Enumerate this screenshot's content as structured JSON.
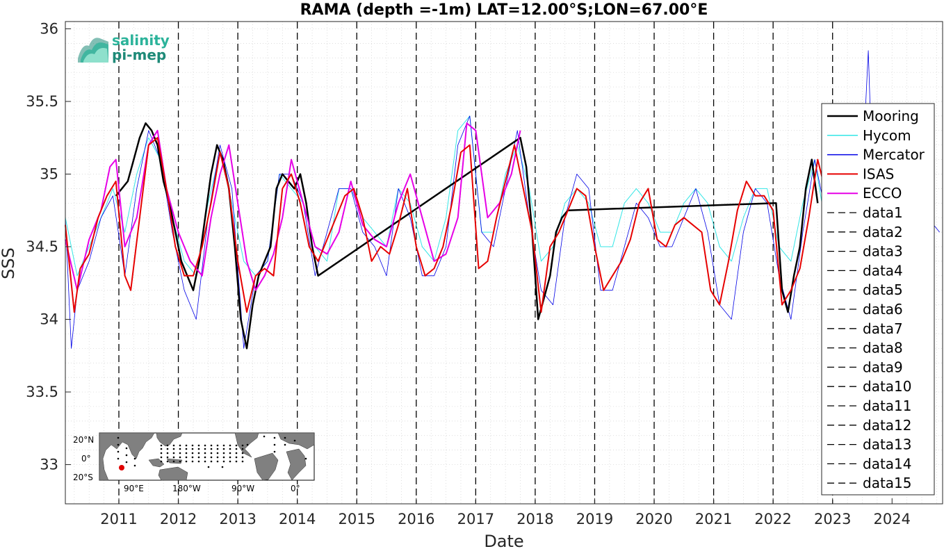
{
  "logo": {
    "line1": "salinity",
    "line2": "pi-mep",
    "color1": "#2bb39a",
    "color2": "#1e8a78"
  },
  "map": {
    "lat_labels": [
      "20°N",
      "0°",
      "20°S"
    ],
    "lon_labels": [
      "90°E",
      "180°W",
      "90°W",
      "0°"
    ],
    "marker_color": "#e00000"
  },
  "chart_data": {
    "type": "line",
    "title": "RAMA (depth =-1m) LAT=12.00°S;LON=67.00°E",
    "xlabel": "Date",
    "ylabel": "SSS",
    "xlim": [
      2010.1,
      2024.85
    ],
    "ylim": [
      32.73,
      36.05
    ],
    "yticks": [
      33,
      33.5,
      34,
      34.5,
      35,
      35.5,
      36
    ],
    "ytick_labels": [
      "33",
      "33.5",
      "34",
      "34.5",
      "35",
      "35.5",
      "36"
    ],
    "xticks": [
      2011,
      2012,
      2013,
      2014,
      2015,
      2016,
      2017,
      2018,
      2019,
      2020,
      2021,
      2022,
      2023,
      2024
    ],
    "xtick_labels": [
      "2011",
      "2012",
      "2013",
      "2014",
      "2015",
      "2016",
      "2017",
      "2018",
      "2019",
      "2020",
      "2021",
      "2022",
      "2023",
      "2024"
    ],
    "grid": true,
    "legend_position": "right",
    "vertical_dashed_lines": [
      2011,
      2012,
      2013,
      2014,
      2015,
      2016,
      2017,
      2018,
      2019,
      2020,
      2021,
      2022,
      2023
    ],
    "series": [
      {
        "name": "Mooring",
        "color": "#000000",
        "width": 2.5,
        "x": [
          2010.95,
          2011.05,
          2011.15,
          2011.25,
          2011.35,
          2011.45,
          2011.55,
          2011.65,
          2011.75,
          2011.85,
          2011.95,
          2012.05,
          2012.15,
          2012.25,
          2012.35,
          2012.45,
          2012.55,
          2012.65,
          2012.75,
          2012.85,
          2012.95,
          2013.05,
          2013.15,
          2013.25,
          2013.35,
          2013.45,
          2013.55,
          2013.65,
          2013.75,
          2013.85,
          2013.95,
          2014.05,
          2014.15,
          2014.25,
          2014.35,
          2017.75,
          2017.85,
          2017.95,
          2018.05,
          2018.15,
          2018.25,
          2018.35,
          2018.45,
          2018.55,
          2022.05,
          2022.15,
          2022.25,
          2022.35,
          2022.45,
          2022.55,
          2022.65,
          2022.75
        ],
        "y": [
          34.85,
          34.9,
          34.95,
          35.1,
          35.25,
          35.35,
          35.3,
          35.2,
          34.95,
          34.8,
          34.6,
          34.4,
          34.3,
          34.2,
          34.4,
          34.7,
          35.0,
          35.2,
          35.1,
          34.9,
          34.5,
          34.0,
          33.8,
          34.1,
          34.3,
          34.4,
          34.5,
          34.9,
          35.0,
          34.95,
          34.9,
          35.0,
          34.8,
          34.5,
          34.3,
          35.25,
          35.05,
          34.6,
          34.0,
          34.15,
          34.3,
          34.6,
          34.7,
          34.75,
          34.8,
          34.2,
          34.05,
          34.3,
          34.5,
          34.9,
          35.1,
          34.8
        ]
      },
      {
        "name": "Hycom",
        "color": "#33e6e6",
        "width": 1,
        "x": [
          2010.1,
          2010.3,
          2010.5,
          2010.7,
          2010.9,
          2011.1,
          2011.3,
          2011.5,
          2011.7,
          2011.9,
          2012.1,
          2012.3,
          2012.5,
          2012.7,
          2012.9,
          2013.1,
          2013.3,
          2013.5,
          2013.7,
          2013.9,
          2014.1,
          2014.3,
          2014.5,
          2014.7,
          2014.9,
          2015.1,
          2015.3,
          2015.5,
          2015.7,
          2015.9,
          2016.1,
          2016.3,
          2016.5,
          2016.7,
          2016.9,
          2017.1,
          2017.3,
          2017.5,
          2017.7,
          2017.9,
          2018.1,
          2018.3,
          2018.5,
          2018.7,
          2018.9,
          2019.1,
          2019.3,
          2019.5,
          2019.7,
          2019.9,
          2020.1,
          2020.3,
          2020.5,
          2020.7,
          2020.9,
          2021.1,
          2021.3,
          2021.5,
          2021.7,
          2021.9,
          2022.1,
          2022.3,
          2022.5,
          2022.7,
          2022.9
        ],
        "y": [
          34.7,
          34.3,
          34.5,
          34.7,
          34.9,
          34.6,
          35.0,
          35.25,
          35.1,
          34.7,
          34.4,
          34.3,
          34.8,
          35.15,
          34.8,
          34.4,
          34.3,
          34.4,
          35.0,
          34.9,
          34.8,
          34.5,
          34.4,
          34.9,
          34.9,
          34.7,
          34.6,
          34.5,
          34.9,
          34.8,
          34.5,
          34.4,
          34.7,
          35.3,
          35.4,
          34.6,
          34.6,
          35.0,
          35.2,
          34.9,
          34.4,
          34.5,
          34.8,
          34.9,
          34.8,
          34.5,
          34.5,
          34.8,
          34.9,
          34.8,
          34.6,
          34.6,
          34.8,
          34.9,
          34.8,
          34.5,
          34.4,
          34.7,
          34.9,
          34.9,
          34.5,
          34.4,
          34.8,
          35.1,
          34.6
        ]
      },
      {
        "name": "Mercator",
        "color": "#0000e6",
        "width": 0.8,
        "x": [
          2010.1,
          2010.2,
          2010.3,
          2010.5,
          2010.7,
          2010.9,
          2011.1,
          2011.3,
          2011.5,
          2011.7,
          2011.9,
          2012.1,
          2012.3,
          2012.5,
          2012.7,
          2012.9,
          2013.1,
          2013.3,
          2013.5,
          2013.7,
          2013.9,
          2014.1,
          2014.3,
          2014.5,
          2014.7,
          2014.9,
          2015.1,
          2015.3,
          2015.5,
          2015.7,
          2015.9,
          2016.1,
          2016.3,
          2016.5,
          2016.7,
          2016.9,
          2017.1,
          2017.3,
          2017.5,
          2017.7,
          2017.9,
          2018.1,
          2018.3,
          2018.5,
          2018.7,
          2018.9,
          2019.1,
          2019.3,
          2019.5,
          2019.7,
          2019.9,
          2020.1,
          2020.3,
          2020.5,
          2020.7,
          2020.9,
          2021.1,
          2021.3,
          2021.5,
          2021.7,
          2021.9,
          2022.1,
          2022.3,
          2022.5,
          2022.7,
          2022.9,
          2023.3,
          2023.5,
          2023.6,
          2023.7,
          2023.9,
          2024.3,
          2024.6,
          2024.8
        ],
        "y": [
          34.7,
          33.8,
          34.2,
          34.4,
          34.7,
          34.85,
          34.3,
          34.9,
          35.3,
          35.1,
          34.6,
          34.2,
          34.0,
          34.7,
          35.2,
          34.9,
          33.8,
          34.3,
          34.4,
          35.0,
          35.0,
          34.8,
          34.3,
          34.6,
          34.9,
          34.9,
          34.6,
          34.5,
          34.3,
          34.9,
          34.7,
          34.3,
          34.3,
          34.5,
          35.2,
          35.4,
          34.6,
          34.5,
          34.9,
          35.3,
          34.7,
          34.2,
          34.1,
          34.7,
          35.0,
          34.9,
          34.2,
          34.2,
          34.5,
          34.8,
          34.7,
          34.5,
          34.5,
          34.7,
          34.9,
          34.6,
          34.1,
          34.0,
          34.6,
          34.9,
          34.8,
          34.3,
          34.0,
          34.6,
          35.1,
          34.7,
          34.9,
          35.0,
          35.85,
          34.6,
          34.8,
          34.6,
          34.7,
          34.6
        ]
      },
      {
        "name": "ISAS",
        "color": "#e60000",
        "width": 2,
        "x": [
          2010.1,
          2010.25,
          2010.35,
          2010.5,
          2010.65,
          2010.8,
          2010.95,
          2011.1,
          2011.2,
          2011.35,
          2011.5,
          2011.65,
          2011.8,
          2011.95,
          2012.1,
          2012.25,
          2012.4,
          2012.55,
          2012.7,
          2012.85,
          2013.0,
          2013.15,
          2013.3,
          2013.45,
          2013.6,
          2013.75,
          2013.9,
          2014.05,
          2014.2,
          2014.35,
          2014.5,
          2014.65,
          2014.8,
          2014.95,
          2015.1,
          2015.25,
          2015.4,
          2015.55,
          2015.7,
          2015.85,
          2016.0,
          2016.15,
          2016.3,
          2016.45,
          2016.6,
          2016.75,
          2016.9,
          2017.05,
          2017.2,
          2017.35,
          2017.5,
          2017.65,
          2017.8,
          2017.95,
          2018.1,
          2018.25,
          2018.4,
          2018.55,
          2018.7,
          2018.85,
          2019.0,
          2019.15,
          2019.3,
          2019.45,
          2019.6,
          2019.75,
          2019.9,
          2020.05,
          2020.2,
          2020.35,
          2020.5,
          2020.65,
          2020.8,
          2020.95,
          2021.1,
          2021.25,
          2021.4,
          2021.55,
          2021.7,
          2021.85,
          2022.0,
          2022.15,
          2022.3,
          2022.45,
          2022.6,
          2022.75,
          2022.9
        ],
        "y": [
          34.65,
          34.05,
          34.35,
          34.45,
          34.7,
          34.85,
          34.95,
          34.3,
          34.2,
          34.7,
          35.2,
          35.25,
          34.9,
          34.5,
          34.3,
          34.3,
          34.5,
          34.8,
          35.15,
          34.9,
          34.4,
          34.05,
          34.3,
          34.35,
          34.3,
          34.9,
          35.0,
          34.8,
          34.5,
          34.4,
          34.55,
          34.7,
          34.85,
          34.9,
          34.7,
          34.4,
          34.5,
          34.45,
          34.65,
          34.9,
          34.5,
          34.3,
          34.35,
          34.5,
          34.8,
          35.15,
          35.2,
          34.35,
          34.4,
          34.7,
          34.95,
          35.2,
          34.9,
          34.6,
          34.05,
          34.5,
          34.6,
          34.75,
          34.9,
          34.85,
          34.5,
          34.2,
          34.3,
          34.4,
          34.55,
          34.8,
          34.9,
          34.55,
          34.5,
          34.65,
          34.7,
          34.65,
          34.6,
          34.2,
          34.1,
          34.4,
          34.75,
          34.95,
          34.85,
          34.85,
          34.75,
          34.1,
          34.2,
          34.35,
          34.7,
          35.1,
          34.85
        ]
      },
      {
        "name": "ECCO",
        "color": "#e600e6",
        "width": 2,
        "x": [
          2010.1,
          2010.3,
          2010.5,
          2010.7,
          2010.85,
          2010.95,
          2011.1,
          2011.3,
          2011.5,
          2011.65,
          2011.8,
          2012.0,
          2012.2,
          2012.4,
          2012.55,
          2012.7,
          2012.85,
          2013.0,
          2013.15,
          2013.3,
          2013.45,
          2013.6,
          2013.75,
          2013.9,
          2014.1,
          2014.3,
          2014.5,
          2014.7,
          2014.9,
          2015.1,
          2015.3,
          2015.5,
          2015.7,
          2015.9,
          2016.1,
          2016.3,
          2016.5,
          2016.7,
          2016.85,
          2017.0,
          2017.2,
          2017.4,
          2017.6,
          2017.75
        ],
        "y": [
          34.55,
          34.2,
          34.55,
          34.75,
          35.05,
          35.1,
          34.5,
          34.7,
          35.2,
          35.3,
          34.9,
          34.6,
          34.4,
          34.3,
          34.7,
          35.0,
          35.2,
          34.8,
          34.4,
          34.2,
          34.3,
          34.45,
          34.7,
          35.1,
          34.8,
          34.5,
          34.45,
          34.6,
          34.95,
          34.65,
          34.55,
          34.5,
          34.8,
          35.0,
          34.7,
          34.4,
          34.45,
          34.7,
          35.35,
          35.3,
          34.7,
          34.8,
          35.0,
          35.3
        ]
      }
    ],
    "legend_entries": [
      "Mooring",
      "Hycom",
      "Mercator",
      "ISAS",
      "ECCO",
      "data1",
      "data2",
      "data3",
      "data4",
      "data5",
      "data6",
      "data7",
      "data8",
      "data9",
      "data10",
      "data11",
      "data12",
      "data13",
      "data14",
      "data15"
    ]
  }
}
